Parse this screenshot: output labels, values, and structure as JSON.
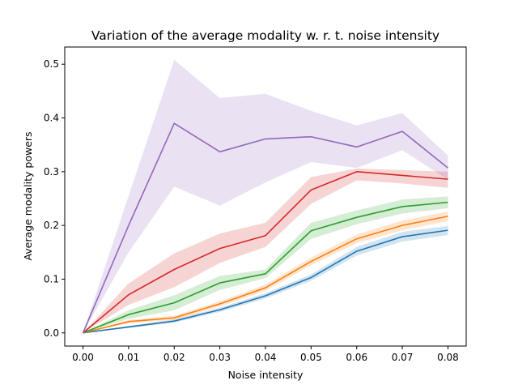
{
  "chart_data": {
    "type": "line",
    "title": "Variation of the average modality w. r. t. noise intensity",
    "xlabel": "Noise intensity",
    "ylabel": "Average modality powers",
    "x": [
      0.0,
      0.01,
      0.02,
      0.03,
      0.04,
      0.05,
      0.06,
      0.07,
      0.08
    ],
    "xticks": [
      "0.00",
      "0.01",
      "0.02",
      "0.03",
      "0.04",
      "0.05",
      "0.06",
      "0.07",
      "0.08"
    ],
    "yticks": [
      "0.0",
      "0.1",
      "0.2",
      "0.3",
      "0.4",
      "0.5"
    ],
    "xlim": [
      -0.004,
      0.084
    ],
    "ylim": [
      -0.0245,
      0.532
    ],
    "grid": false,
    "series": [
      {
        "color": "#1f77b4",
        "values": [
          0.0,
          0.011,
          0.022,
          0.043,
          0.069,
          0.103,
          0.152,
          0.179,
          0.191
        ],
        "lower": [
          0.0,
          0.009,
          0.019,
          0.039,
          0.064,
          0.097,
          0.144,
          0.17,
          0.182
        ],
        "upper": [
          0.0,
          0.013,
          0.025,
          0.047,
          0.074,
          0.109,
          0.16,
          0.188,
          0.199
        ]
      },
      {
        "color": "#ff7f0e",
        "values": [
          0.0,
          0.021,
          0.028,
          0.054,
          0.084,
          0.133,
          0.175,
          0.2,
          0.217
        ],
        "lower": [
          0.0,
          0.018,
          0.024,
          0.049,
          0.078,
          0.126,
          0.167,
          0.191,
          0.208
        ],
        "upper": [
          0.0,
          0.024,
          0.032,
          0.059,
          0.09,
          0.14,
          0.183,
          0.209,
          0.226
        ]
      },
      {
        "color": "#2ca02c",
        "values": [
          0.0,
          0.034,
          0.056,
          0.093,
          0.11,
          0.19,
          0.215,
          0.235,
          0.243
        ],
        "lower": [
          0.0,
          0.026,
          0.042,
          0.08,
          0.102,
          0.175,
          0.202,
          0.222,
          0.232
        ],
        "upper": [
          0.0,
          0.042,
          0.07,
          0.106,
          0.118,
          0.205,
          0.228,
          0.248,
          0.254
        ]
      },
      {
        "color": "#d62728",
        "values": [
          0.0,
          0.071,
          0.118,
          0.157,
          0.181,
          0.266,
          0.3,
          0.293,
          0.286
        ],
        "lower": [
          0.0,
          0.052,
          0.085,
          0.13,
          0.16,
          0.24,
          0.284,
          0.278,
          0.27
        ],
        "upper": [
          0.0,
          0.092,
          0.148,
          0.185,
          0.205,
          0.29,
          0.306,
          0.303,
          0.3
        ]
      },
      {
        "color": "#9467bd",
        "values": [
          0.0,
          0.2,
          0.39,
          0.337,
          0.361,
          0.365,
          0.346,
          0.375,
          0.307
        ],
        "lower": [
          0.0,
          0.15,
          0.272,
          0.237,
          0.28,
          0.318,
          0.307,
          0.34,
          0.285
        ],
        "upper": [
          0.0,
          0.255,
          0.508,
          0.437,
          0.445,
          0.413,
          0.386,
          0.409,
          0.33
        ]
      }
    ]
  }
}
